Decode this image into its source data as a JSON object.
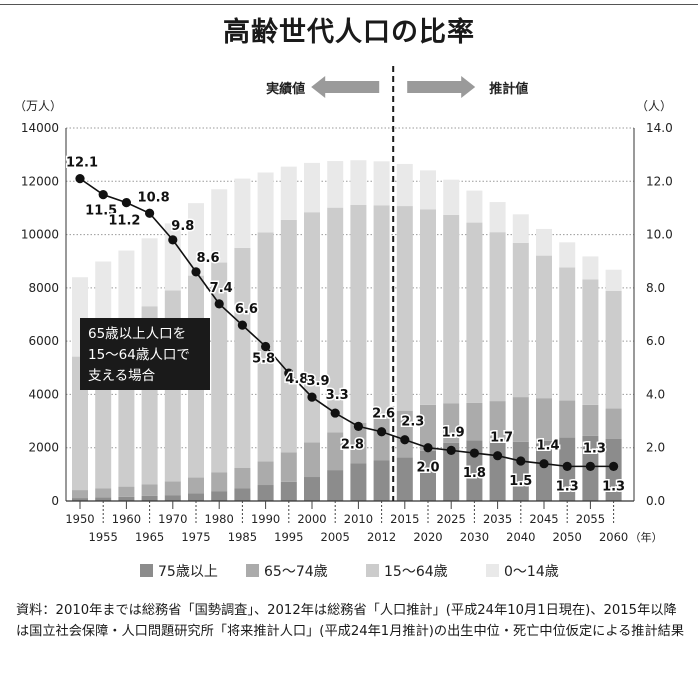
{
  "chart_data": {
    "type": "bar",
    "title": "高齢世代人口の比率",
    "y_left_unit": "（万人）",
    "y_right_unit": "（人）",
    "ylim_left": [
      0,
      14000
    ],
    "ylim_right": [
      0,
      14.0
    ],
    "yticks_left": [
      "0",
      "2000",
      "4000",
      "6000",
      "8000",
      "10000",
      "12000",
      "14000"
    ],
    "yticks_right": [
      "0.0",
      "2.0",
      "4.0",
      "6.0",
      "8.0",
      "10.0",
      "12.0",
      "14.0"
    ],
    "categories": [
      "1950",
      "1955",
      "1960",
      "1965",
      "1970",
      "1975",
      "1980",
      "1985",
      "1990",
      "1995",
      "2000",
      "2005",
      "2010",
      "2012",
      "2015",
      "2020",
      "2025",
      "2030",
      "2035",
      "2040",
      "2045",
      "2050",
      "2055",
      "2060"
    ],
    "xlabel_suffix": "（年）",
    "stacked_series": [
      {
        "name": "75歳以上",
        "color": "#8c8c8c",
        "values": [
          110,
          140,
          160,
          190,
          220,
          280,
          370,
          470,
          600,
          720,
          900,
          1160,
          1420,
          1520,
          1640,
          1880,
          2180,
          2280,
          2250,
          2220,
          2260,
          2380,
          2450,
          2340
        ]
      },
      {
        "name": "65〜74歳",
        "color": "#ababab",
        "values": [
          300,
          330,
          380,
          430,
          520,
          600,
          700,
          780,
          890,
          1110,
          1300,
          1410,
          1520,
          1560,
          1750,
          1730,
          1480,
          1400,
          1500,
          1680,
          1600,
          1390,
          1160,
          1130
        ]
      },
      {
        "name": "15〜64歳",
        "color": "#cccccc",
        "values": [
          5010,
          5520,
          6050,
          6690,
          7160,
          7580,
          7880,
          8250,
          8590,
          8720,
          8640,
          8440,
          8170,
          8020,
          7680,
          7340,
          7080,
          6770,
          6340,
          5790,
          5350,
          5000,
          4710,
          4420
        ]
      },
      {
        "name": "0〜14歳",
        "color": "#e9e9e9",
        "values": [
          2980,
          3000,
          2810,
          2550,
          2520,
          2720,
          2750,
          2600,
          2250,
          2000,
          1850,
          1750,
          1680,
          1650,
          1580,
          1460,
          1320,
          1200,
          1130,
          1070,
          1000,
          940,
          860,
          790
        ]
      }
    ],
    "line_series": {
      "name": "65歳以上人口を15〜64歳人口で支える場合",
      "values": [
        12.1,
        11.5,
        11.2,
        10.8,
        9.8,
        8.6,
        7.4,
        6.6,
        5.8,
        4.8,
        3.9,
        3.3,
        2.8,
        2.6,
        2.3,
        2.0,
        1.9,
        1.8,
        1.7,
        1.5,
        1.4,
        1.3,
        1.3,
        1.3
      ],
      "labels": [
        "12.1",
        "11.5",
        "11.2",
        "10.8",
        "9.8",
        "8.6",
        "7.4",
        "6.6",
        "5.8",
        "4.8",
        "3.9",
        "3.3",
        "2.8",
        "2.6",
        "2.3",
        "2.0",
        "1.9",
        "1.8",
        "1.7",
        "1.5",
        "1.4",
        "1.3",
        "1.3",
        "1.3"
      ]
    },
    "annotation": [
      "65歳以上人口を",
      "15〜64歳人口で",
      "支える場合"
    ],
    "actual_label": "実績値",
    "projection_label": "推計値",
    "grid": true,
    "legend_position": "bottom"
  },
  "source_note": "資料：2010年までは総務省「国勢調査」、2012年は総務省「人口推計」(平成24年10月1日現在)、2015年以降は国立社会保障・人口問題研究所「将来推計人口」(平成24年1月推計)の出生中位・死亡中位仮定による推計結果"
}
